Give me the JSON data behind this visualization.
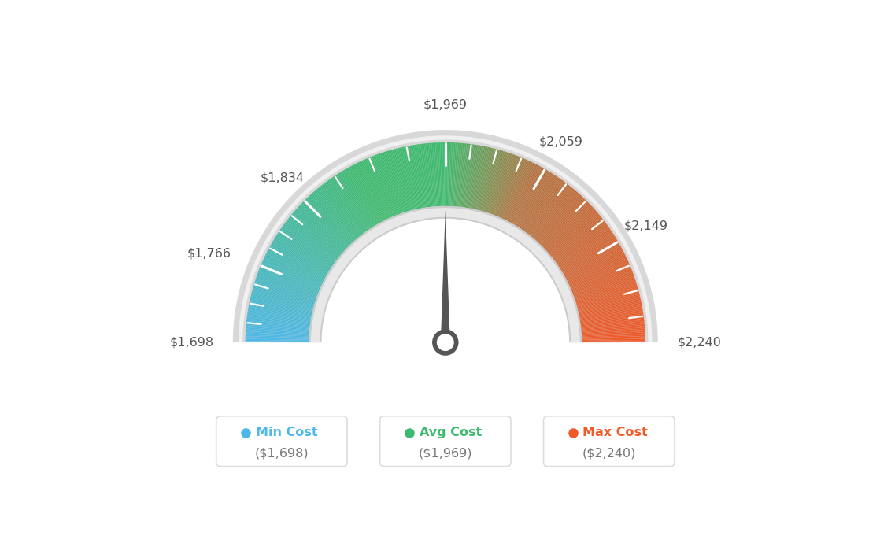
{
  "min_val": 1698,
  "avg_val": 1969,
  "max_val": 2240,
  "tick_labels": [
    "$1,698",
    "$1,766",
    "$1,834",
    "$1,969",
    "$2,059",
    "$2,149",
    "$2,240"
  ],
  "tick_values": [
    1698,
    1766,
    1834,
    1969,
    2059,
    2149,
    2240
  ],
  "legend_items": [
    {
      "label": "Min Cost",
      "value": "($1,698)",
      "color": "#4db8e8"
    },
    {
      "label": "Avg Cost",
      "value": "($1,969)",
      "color": "#3dba6e"
    },
    {
      "label": "Max Cost",
      "value": "($2,240)",
      "color": "#f05a28"
    }
  ],
  "bg_color": "#ffffff",
  "color_stops": [
    [
      0.0,
      [
        0.3,
        0.72,
        0.91
      ]
    ],
    [
      0.35,
      [
        0.24,
        0.73,
        0.43
      ]
    ],
    [
      0.5,
      [
        0.24,
        0.73,
        0.43
      ]
    ],
    [
      0.65,
      [
        0.7,
        0.45,
        0.25
      ]
    ],
    [
      1.0,
      [
        0.94,
        0.35,
        0.16
      ]
    ]
  ]
}
